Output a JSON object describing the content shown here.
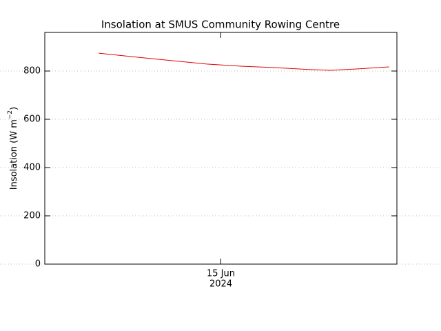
{
  "chart_data": {
    "type": "line",
    "title": "Insolation at SMUS Community Rowing Centre",
    "ylabel": "Insolation (W m",
    "ylabel_sup": "−2",
    "ylabel_end": ")",
    "x": [
      14.653,
      14.764,
      14.862,
      14.96,
      15.058,
      15.156,
      15.253,
      15.312,
      15.39,
      15.478
    ],
    "series": [
      {
        "color": "#e00000",
        "values": [
          874,
          857,
          843,
          829,
          820,
          814,
          806,
          803,
          809,
          817
        ]
      }
    ],
    "xlim": [
      14.5,
      15.5
    ],
    "xticks": [
      {
        "value": 15,
        "label": "15 Jun"
      }
    ],
    "xtick_sublabel": "2024",
    "ylim": [
      0,
      960
    ],
    "yticks": [
      0,
      200,
      400,
      600,
      800
    ],
    "grid": true
  }
}
